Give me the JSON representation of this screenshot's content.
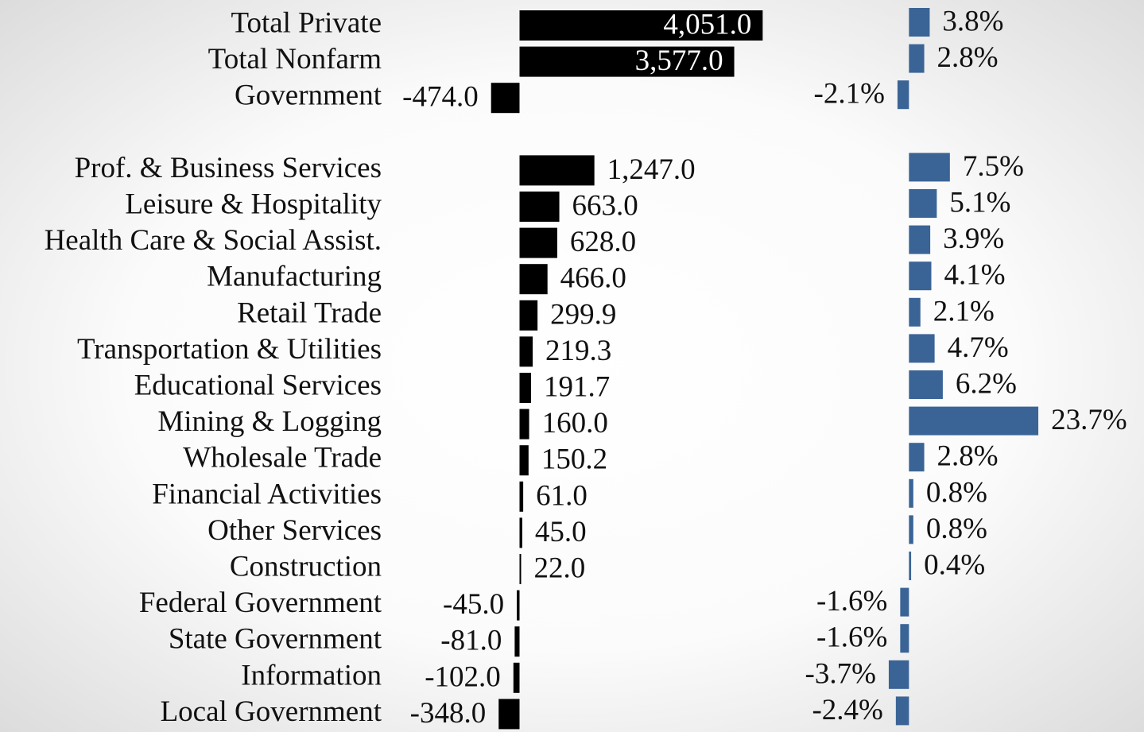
{
  "chart_data": [
    {
      "type": "bar",
      "orientation": "horizontal",
      "color": "#000000",
      "xlim": [
        -1000,
        5000
      ],
      "categories": [
        "Total Private",
        "Total Nonfarm",
        "Government",
        null,
        "Prof. & Business Services",
        "Leisure & Hospitality",
        "Health Care & Social Assist.",
        "Manufacturing",
        "Retail Trade",
        "Transportation & Utilities",
        "Educational Services",
        "Mining & Logging",
        "Wholesale Trade",
        "Financial Activities",
        "Other Services",
        "Construction",
        "Federal Government",
        "State Government",
        "Information",
        "Local Government"
      ],
      "values": [
        4051.0,
        3577.0,
        -474.0,
        null,
        1247.0,
        663.0,
        628.0,
        466.0,
        299.9,
        219.3,
        191.7,
        160.0,
        150.2,
        61.0,
        45.0,
        22.0,
        -45.0,
        -81.0,
        -102.0,
        -348.0
      ],
      "value_labels": [
        "4,051.0",
        "3,577.0",
        "-474.0",
        null,
        "1,247.0",
        "663.0",
        "628.0",
        "466.0",
        "299.9",
        "219.3",
        "191.7",
        "160.0",
        "150.2",
        "61.0",
        "45.0",
        "22.0",
        "-45.0",
        "-81.0",
        "-102.0",
        "-348.0"
      ]
    },
    {
      "type": "bar",
      "orientation": "horizontal",
      "color": "#3a6496",
      "xlim": [
        -5,
        25
      ],
      "values": [
        3.8,
        2.8,
        -2.1,
        null,
        7.5,
        5.1,
        3.9,
        4.1,
        2.1,
        4.7,
        6.2,
        23.7,
        2.8,
        0.8,
        0.8,
        0.4,
        -1.6,
        -1.6,
        -3.7,
        -2.4
      ],
      "value_labels": [
        "3.8%",
        "2.8%",
        "-2.1%",
        null,
        "7.5%",
        "5.1%",
        "3.9%",
        "4.1%",
        "2.1%",
        "4.7%",
        "6.2%",
        "23.7%",
        "2.8%",
        "0.8%",
        "0.8%",
        "0.4%",
        "-1.6%",
        "-1.6%",
        "-3.7%",
        "-2.4%"
      ]
    }
  ]
}
